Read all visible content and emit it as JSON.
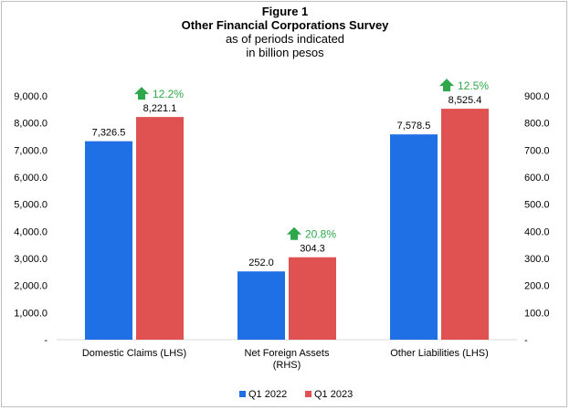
{
  "chart_data": {
    "type": "bar",
    "title": "Figure 1",
    "subtitle_lines": [
      "Other Financial Corporations Survey",
      "as of periods indicated",
      "in billion pesos"
    ],
    "categories": [
      {
        "label_lines": [
          "Domestic Claims (LHS)"
        ],
        "axis": "left"
      },
      {
        "label_lines": [
          "Net Foreign Assets",
          "(RHS)"
        ],
        "axis": "right"
      },
      {
        "label_lines": [
          "Other Liabilities (LHS)"
        ],
        "axis": "left"
      }
    ],
    "series": [
      {
        "name": "Q1 2022",
        "color": "#1f6fe5",
        "values": [
          7326.5,
          252.0,
          7578.5
        ],
        "labels": [
          "7,326.5",
          "252.0",
          "7,578.5"
        ]
      },
      {
        "name": "Q1 2023",
        "color": "#e05252",
        "values": [
          8221.1,
          304.3,
          8525.4
        ],
        "labels": [
          "8,221.1",
          "304.3",
          "8,525.4"
        ]
      }
    ],
    "growth": {
      "labels": [
        "12.2%",
        "20.8%",
        "12.5%"
      ],
      "icon": "up-arrow-icon",
      "color": "#2ea84a"
    },
    "left_axis": {
      "ylim": [
        0,
        9000
      ],
      "ticks": [
        0,
        1000,
        2000,
        3000,
        4000,
        5000,
        6000,
        7000,
        8000,
        9000
      ],
      "tick_labels": [
        "-",
        "1,000.0",
        "2,000.0",
        "3,000.0",
        "4,000.0",
        "5,000.0",
        "6,000.0",
        "7,000.0",
        "8,000.0",
        "9,000.0"
      ]
    },
    "right_axis": {
      "ylim": [
        0,
        900
      ],
      "ticks": [
        0,
        100,
        200,
        300,
        400,
        500,
        600,
        700,
        800,
        900
      ],
      "tick_labels": [
        "-",
        "100.0",
        "200.0",
        "300.0",
        "400.0",
        "500.0",
        "600.0",
        "700.0",
        "800.0",
        "900.0"
      ]
    },
    "grid": false,
    "legend": {
      "placement": "bottom-center"
    }
  }
}
